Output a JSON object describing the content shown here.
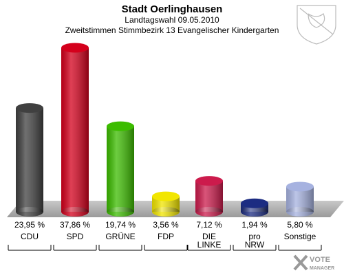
{
  "chart_data": {
    "type": "bar",
    "title": "Stadt Oerlinghausen",
    "subtitle": "Landtagswahl 09.05.2010",
    "description": "Zweitstimmen Stimmbezirk 13 Evangelischer Kindergarten",
    "categories": [
      "CDU",
      "SPD",
      "GRÜNE",
      "FDP",
      "DIE\nLINKE",
      "pro\nNRW",
      "Sonstige"
    ],
    "values": [
      23.95,
      37.86,
      19.74,
      3.56,
      7.12,
      1.94,
      5.8
    ],
    "value_labels": [
      "23,95 %",
      "37,86 %",
      "19,74 %",
      "3,56 %",
      "7,12 %",
      "1,94 %",
      "5,80 %"
    ],
    "colors": [
      "#404040",
      "#d4001c",
      "#3cbc00",
      "#f2e600",
      "#cc1b4c",
      "#1c2c82",
      "#a6b2e0"
    ],
    "logo": [
      "VOTE",
      "MANAGER"
    ]
  }
}
